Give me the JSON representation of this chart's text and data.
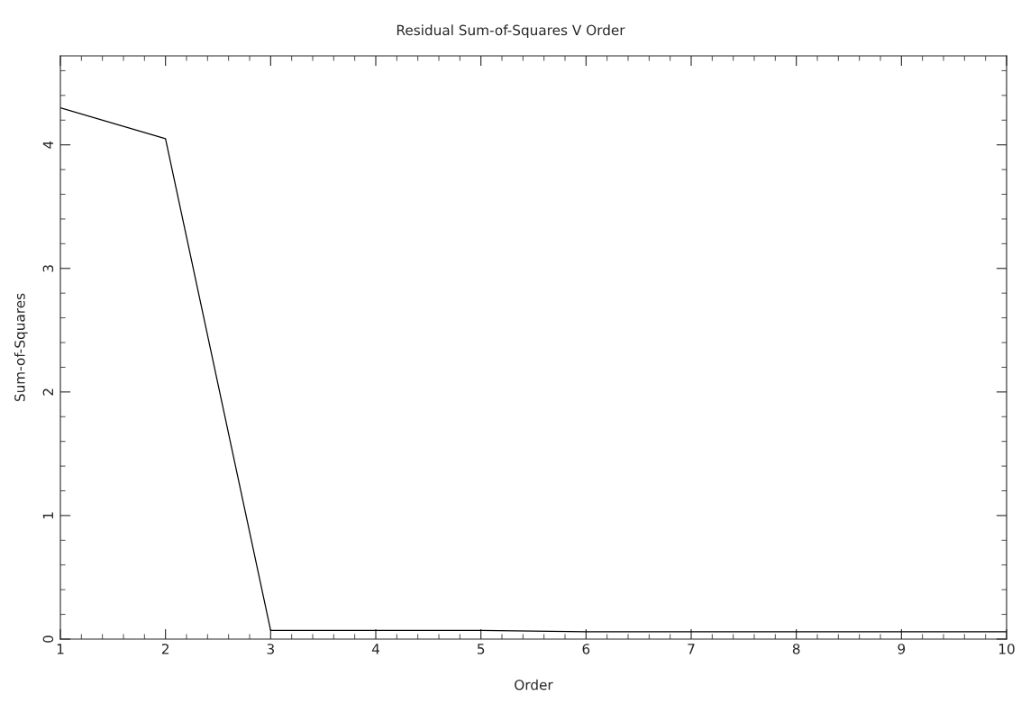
{
  "chart_data": {
    "type": "line",
    "title": "Residual Sum-of-Squares V Order",
    "xlabel": "Order",
    "ylabel": "Sum-of-Squares",
    "x": [
      1,
      2,
      3,
      4,
      5,
      6,
      7,
      8,
      9,
      10
    ],
    "series": [
      {
        "color": "#000000",
        "values": [
          4.3,
          4.05,
          0.07,
          0.07,
          0.07,
          0.06,
          0.06,
          0.06,
          0.06,
          0.06
        ]
      }
    ],
    "xlim": [
      1,
      10
    ],
    "ylim": [
      0,
      4.72
    ],
    "xticks": [
      1,
      2,
      3,
      4,
      5,
      6,
      7,
      8,
      9,
      10
    ],
    "yticks": [
      0,
      1,
      2,
      3,
      4
    ],
    "grid": false,
    "legend": false,
    "marker": "none",
    "line_style": "solid"
  }
}
